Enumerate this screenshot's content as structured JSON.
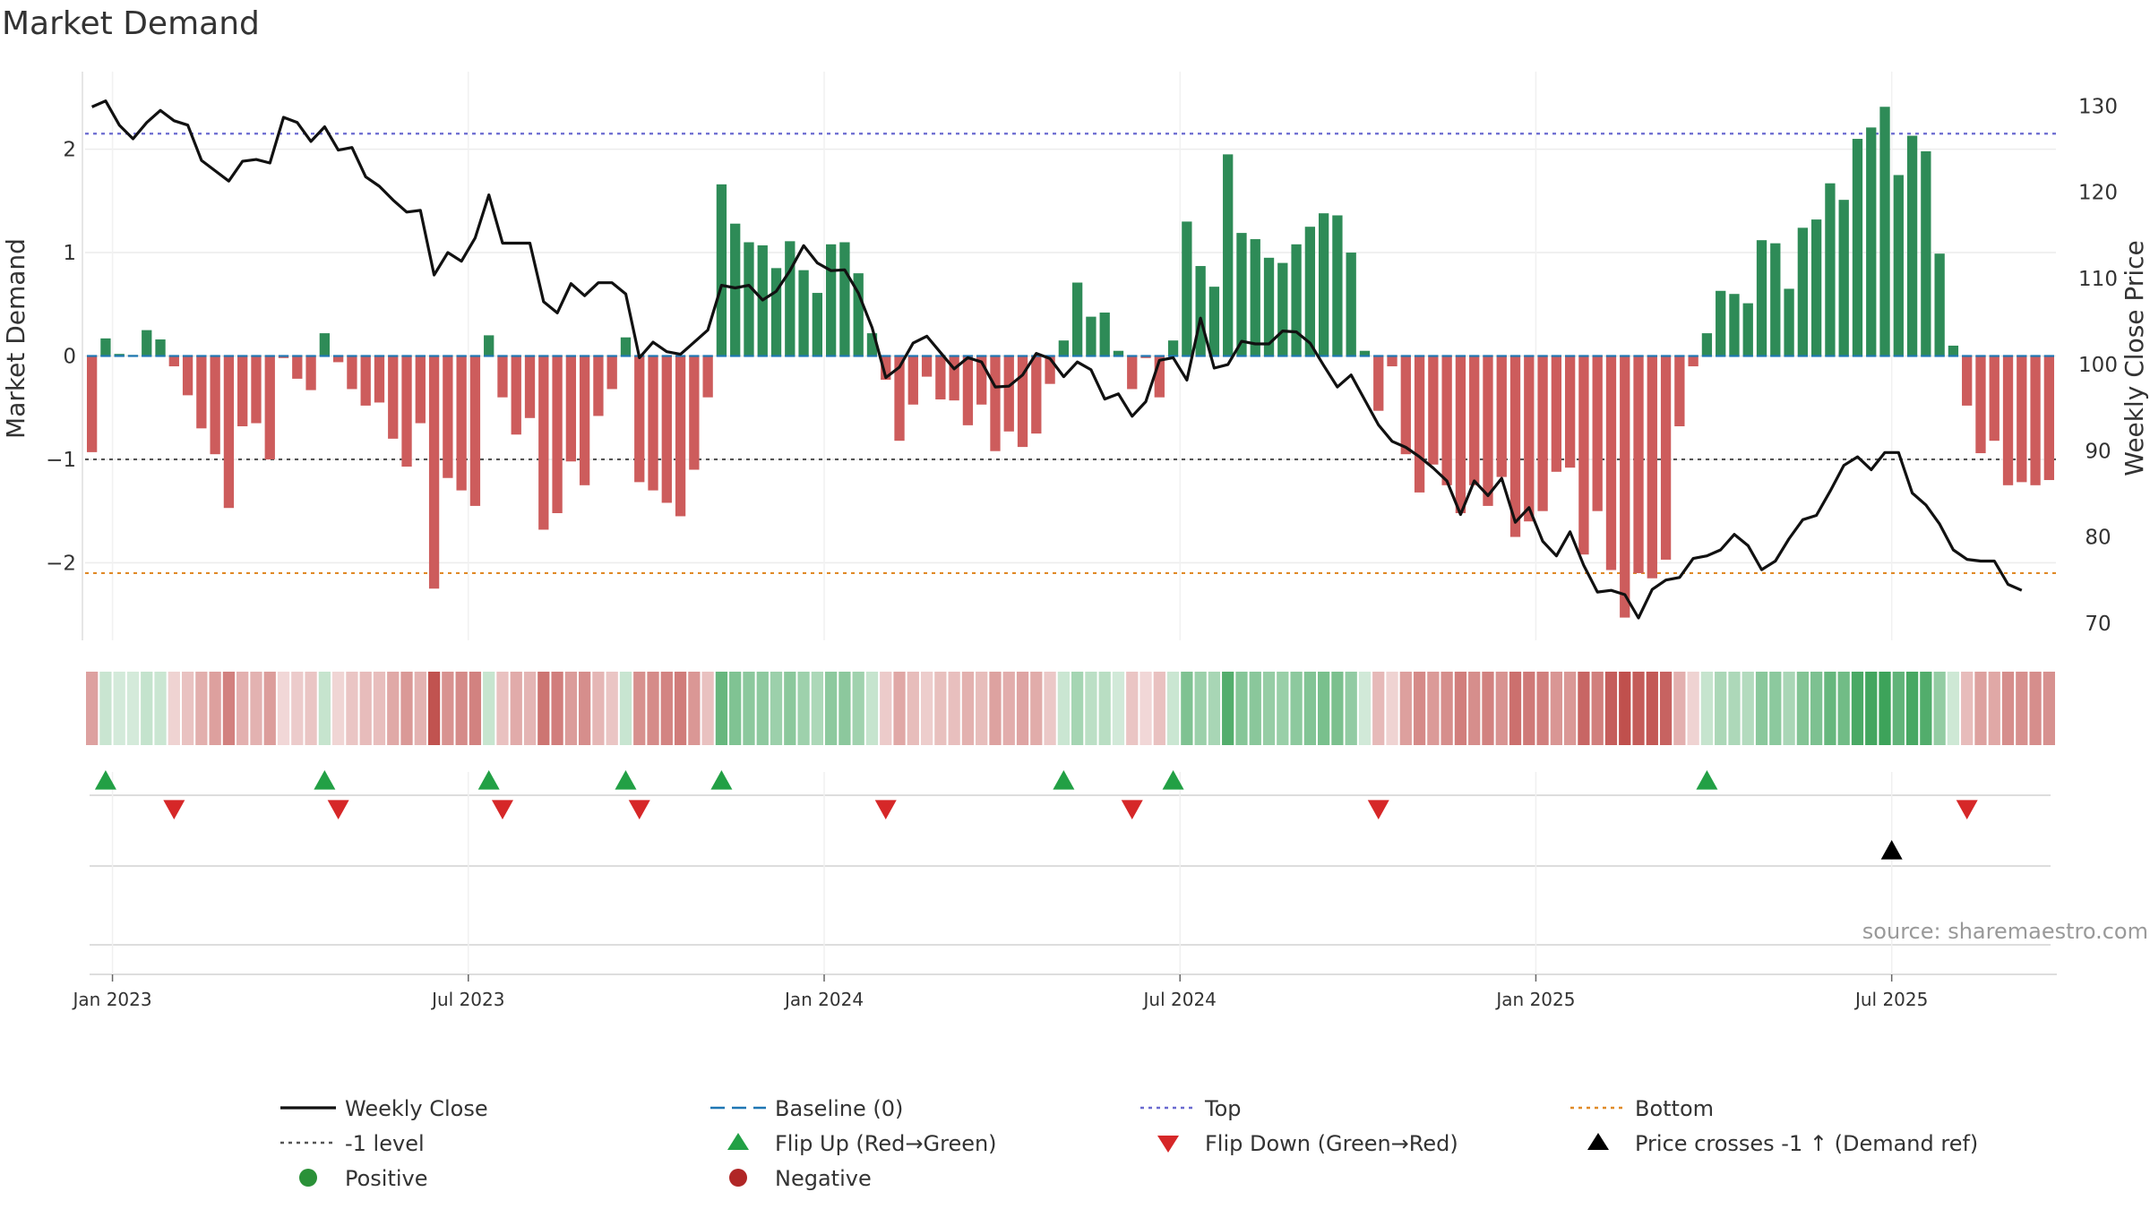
{
  "chart_data": {
    "type": "bar",
    "title": "Market Demand",
    "ylabel_left": "Market Demand",
    "ylabel_right": "Weekly Close Price",
    "ylim_left": [
      -2.75,
      2.75
    ],
    "ylim_right": [
      68,
      134
    ],
    "left_ticks": [
      {
        "v": 2,
        "label": "2"
      },
      {
        "v": 1,
        "label": "1"
      },
      {
        "v": 0,
        "label": "0"
      },
      {
        "v": -1,
        "label": "−1"
      },
      {
        "v": -2,
        "label": "−2"
      }
    ],
    "right_ticks": [
      {
        "v": 130,
        "label": "130"
      },
      {
        "v": 120,
        "label": "120"
      },
      {
        "v": 110,
        "label": "110"
      },
      {
        "v": 100,
        "label": "100"
      },
      {
        "v": 90,
        "label": "90"
      },
      {
        "v": 80,
        "label": "80"
      },
      {
        "v": 70,
        "label": "70"
      }
    ],
    "x_ticks": [
      {
        "i": 1.5,
        "label": "Jan 2023"
      },
      {
        "i": 27.5,
        "label": "Jul 2023"
      },
      {
        "i": 53.5,
        "label": "Jan 2024"
      },
      {
        "i": 79.5,
        "label": "Jul 2024"
      },
      {
        "i": 105.5,
        "label": "Jan 2025"
      },
      {
        "i": 131.5,
        "label": "Jul 2025"
      }
    ],
    "reference_lines": {
      "top": 2.15,
      "minus_one": -1.0,
      "bottom": -2.1,
      "baseline": 0
    },
    "demand": [
      -0.93,
      0.17,
      0.02,
      0.01,
      0.25,
      0.16,
      -0.1,
      -0.38,
      -0.7,
      -0.95,
      -1.47,
      -0.68,
      -0.65,
      -1.0,
      -0.02,
      -0.22,
      -0.33,
      0.22,
      -0.06,
      -0.32,
      -0.48,
      -0.45,
      -0.8,
      -1.07,
      -0.65,
      -2.25,
      -1.18,
      -1.3,
      -1.45,
      0.2,
      -0.4,
      -0.76,
      -0.6,
      -1.68,
      -1.52,
      -1.02,
      -1.25,
      -0.58,
      -0.32,
      0.18,
      -1.22,
      -1.3,
      -1.42,
      -1.55,
      -1.1,
      -0.4,
      1.66,
      1.28,
      1.1,
      1.07,
      0.85,
      1.11,
      0.83,
      0.61,
      1.08,
      1.1,
      0.8,
      0.22,
      -0.23,
      -0.82,
      -0.47,
      -0.2,
      -0.42,
      -0.43,
      -0.67,
      -0.47,
      -0.92,
      -0.73,
      -0.88,
      -0.75,
      -0.27,
      0.15,
      0.71,
      0.38,
      0.42,
      0.05,
      -0.32,
      -0.02,
      -0.4,
      0.15,
      1.3,
      0.87,
      0.67,
      1.95,
      1.19,
      1.13,
      0.95,
      0.9,
      1.08,
      1.25,
      1.38,
      1.36,
      1.0,
      0.05,
      -0.53,
      -0.1,
      -0.95,
      -1.32,
      -1.05,
      -1.25,
      -1.52,
      -1.25,
      -1.45,
      -1.17,
      -1.75,
      -1.6,
      -1.5,
      -1.12,
      -1.08,
      -1.92,
      -1.5,
      -2.07,
      -2.53,
      -2.1,
      -2.15,
      -1.97,
      -0.68,
      -0.1,
      0.22,
      0.63,
      0.6,
      0.51,
      1.12,
      1.09,
      0.65,
      1.24,
      1.32,
      1.67,
      1.51,
      2.1,
      2.21,
      2.41,
      1.75,
      2.13,
      1.98,
      0.99,
      0.1,
      -0.48,
      -0.94,
      -0.82,
      -1.25,
      -1.22,
      -1.25,
      -1.2
    ],
    "price": [
      129.9,
      130.6,
      127.8,
      126.2,
      128.1,
      129.5,
      128.3,
      127.8,
      123.7,
      122.5,
      121.3,
      123.6,
      123.8,
      123.4,
      128.7,
      128.1,
      125.9,
      127.6,
      124.9,
      125.2,
      121.8,
      120.7,
      119.1,
      117.7,
      117.9,
      110.4,
      113.0,
      112.0,
      114.7,
      119.7,
      114.1,
      114.1,
      114.1,
      107.3,
      106.0,
      109.4,
      108.0,
      109.5,
      109.5,
      108.2,
      100.8,
      102.6,
      101.5,
      101.2,
      102.6,
      104.0,
      109.2,
      108.9,
      109.2,
      107.5,
      108.5,
      110.9,
      113.8,
      111.8,
      110.9,
      111.0,
      108.3,
      104.3,
      98.5,
      99.7,
      102.5,
      103.3,
      101.4,
      99.5,
      100.8,
      100.3,
      97.4,
      97.5,
      98.8,
      101.3,
      100.7,
      98.6,
      100.3,
      99.4,
      96.0,
      96.6,
      94.0,
      95.7,
      100.5,
      100.8,
      98.2,
      105.4,
      99.6,
      100.0,
      102.7,
      102.4,
      102.4,
      103.9,
      103.8,
      102.5,
      99.9,
      97.4,
      98.8,
      95.9,
      93.0,
      91.1,
      90.4,
      89.3,
      88.0,
      86.5,
      82.6,
      86.5,
      84.8,
      86.8,
      81.7,
      83.4,
      79.5,
      77.8,
      80.6,
      76.7,
      73.6,
      73.8,
      73.3,
      70.6,
      73.9,
      75.0,
      75.3,
      77.5,
      77.8,
      78.5,
      80.3,
      79.0,
      76.2,
      77.2,
      79.8,
      82.0,
      82.5,
      85.3,
      88.3,
      89.3,
      87.8,
      89.8,
      89.8,
      85.1,
      83.7,
      81.5,
      78.5,
      77.4,
      77.2,
      77.2,
      74.5,
      73.8
    ],
    "flip_up_idx": [
      1,
      17,
      29,
      39,
      46,
      71,
      79,
      118
    ],
    "flip_down_idx": [
      6,
      18,
      30,
      40,
      58,
      76,
      94,
      137
    ],
    "price_cross_idx": [
      131.5
    ]
  },
  "legend": [
    {
      "kind": "line-solid",
      "color": "#111111",
      "label": "Weekly Close"
    },
    {
      "kind": "line-dash",
      "color": "#1f77b4",
      "label": "Baseline (0)"
    },
    {
      "kind": "line-dot",
      "color": "#6a6ad0",
      "label": "Top"
    },
    {
      "kind": "line-dot",
      "color": "#e08a28",
      "label": "Bottom"
    },
    {
      "kind": "line-dot",
      "color": "#555555",
      "label": "-1 level"
    },
    {
      "kind": "tri-up",
      "color": "#22a045",
      "label": "Flip Up (Red→Green)"
    },
    {
      "kind": "tri-down",
      "color": "#d62728",
      "label": "Flip Down (Green→Red)"
    },
    {
      "kind": "tri-up",
      "color": "#000000",
      "label": "Price crosses -1 ↑ (Demand ref)"
    },
    {
      "kind": "dot",
      "color": "#2a9138",
      "label": "Positive"
    },
    {
      "kind": "dot",
      "color": "#b02626",
      "label": "Negative"
    }
  ],
  "source": "source: sharemaestro.com",
  "colors": {
    "positive": "#2e8b57",
    "negative": "#cd5c5c",
    "price": "#111111"
  }
}
